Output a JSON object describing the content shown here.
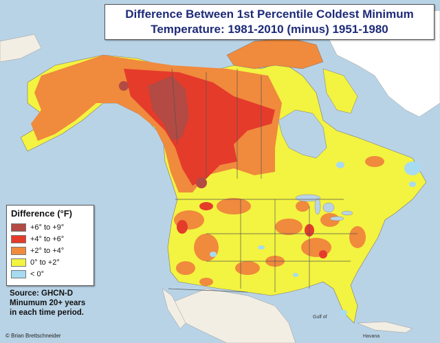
{
  "title": {
    "line1": "Difference Between 1st Percentile Coldest Minimum",
    "line2": "Temperature: 1981-2010 (minus) 1951-1980"
  },
  "legend": {
    "title": "Difference (°F)",
    "items": [
      {
        "label": "+6° to +9°",
        "color": "#b34a43"
      },
      {
        "label": "+4° to +6°",
        "color": "#e53b2b"
      },
      {
        "label": "+2° to +4°",
        "color": "#f08a3c"
      },
      {
        "label": "0° to +2°",
        "color": "#f3f341"
      },
      {
        "label": "< 0°",
        "color": "#a6dbf2"
      }
    ]
  },
  "source": {
    "line1": "Source: GHCN-D",
    "line2": "Minumum 20+ years",
    "line3": "in each time period."
  },
  "credit": "© Brian Brettschneider",
  "places": {
    "havana": "Havana",
    "gulf": "Gulf of"
  },
  "colors": {
    "water": "#b9d3e6",
    "land_other": "#f2eee4",
    "warm_strong": "#b34a43",
    "warm_mid": "#e53b2b",
    "warm_low": "#f08a3c",
    "neutral": "#f3f341",
    "cool": "#a6dbf2",
    "ice": "#ffffff"
  }
}
